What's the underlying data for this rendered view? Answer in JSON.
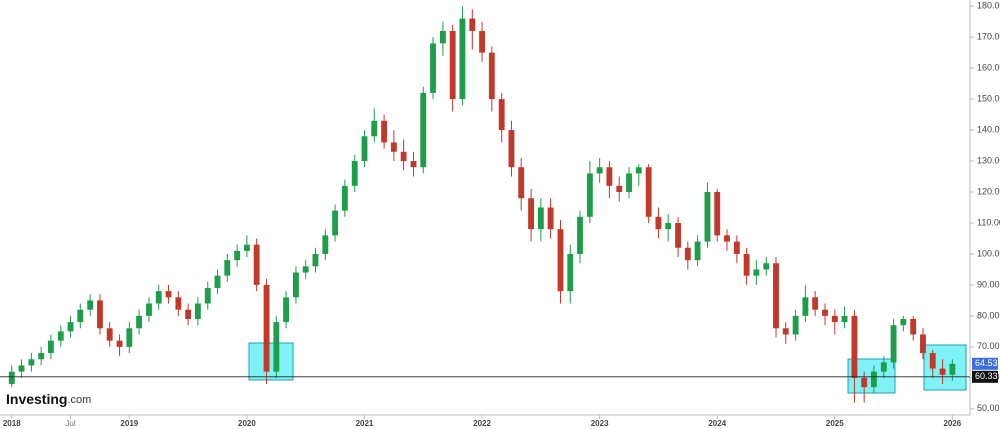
{
  "chart_data": {
    "type": "candlestick",
    "x": [
      2018,
      2018.083,
      2018.167,
      2018.25,
      2018.333,
      2018.417,
      2018.5,
      2018.583,
      2018.667,
      2018.75,
      2018.833,
      2018.917,
      2019,
      2019.083,
      2019.167,
      2019.25,
      2019.333,
      2019.417,
      2019.5,
      2019.583,
      2019.667,
      2019.75,
      2019.833,
      2019.917,
      2020,
      2020.083,
      2020.167,
      2020.25,
      2020.333,
      2020.417,
      2020.5,
      2020.583,
      2020.667,
      2020.75,
      2020.833,
      2020.917,
      2021,
      2021.083,
      2021.167,
      2021.25,
      2021.333,
      2021.417,
      2021.5,
      2021.583,
      2021.667,
      2021.75,
      2021.833,
      2021.917,
      2022,
      2022.083,
      2022.167,
      2022.25,
      2022.333,
      2022.417,
      2022.5,
      2022.583,
      2022.667,
      2022.75,
      2022.833,
      2022.917,
      2023,
      2023.083,
      2023.167,
      2023.25,
      2023.333,
      2023.417,
      2023.5,
      2023.583,
      2023.667,
      2023.75,
      2023.833,
      2023.917,
      2024,
      2024.083,
      2024.167,
      2024.25,
      2024.333,
      2024.417,
      2024.5,
      2024.583,
      2024.667,
      2024.75,
      2024.833,
      2024.917,
      2025,
      2025.083,
      2025.167,
      2025.25,
      2025.333,
      2025.417,
      2025.5,
      2025.583,
      2025.667,
      2025.75,
      2025.833,
      2025.917,
      2026
    ],
    "open": [
      58,
      62,
      64,
      66,
      68,
      72,
      75,
      78,
      82,
      85,
      76,
      72,
      70,
      76,
      80,
      84,
      88,
      86,
      82,
      79,
      84,
      89,
      93,
      98,
      101,
      103,
      90,
      62,
      78,
      86,
      94,
      96,
      100,
      106,
      114,
      122,
      130,
      138,
      143,
      136,
      133,
      130,
      128,
      152,
      168,
      172,
      150,
      176,
      172,
      165,
      150,
      140,
      128,
      118,
      108,
      115,
      108,
      88,
      100,
      112,
      126,
      128,
      122,
      120,
      126,
      128,
      112,
      108,
      110,
      102,
      98,
      104,
      120,
      106,
      104,
      100,
      93,
      95,
      97,
      76,
      74,
      80,
      86,
      82,
      80,
      78,
      80,
      60,
      57,
      62,
      65,
      77,
      79,
      74,
      68,
      63,
      61
    ],
    "high": [
      64,
      66,
      68,
      70,
      74,
      77,
      80,
      84,
      87,
      87,
      78,
      74,
      78,
      82,
      86,
      90,
      90,
      88,
      84,
      86,
      91,
      95,
      100,
      103,
      106,
      105,
      92,
      80,
      88,
      96,
      98,
      102,
      108,
      116,
      124,
      132,
      140,
      147,
      145,
      140,
      137,
      133,
      154,
      170,
      175,
      174,
      180,
      179,
      175,
      167,
      152,
      143,
      131,
      121,
      118,
      118,
      111,
      103,
      114,
      130,
      131,
      130,
      125,
      128,
      129,
      129,
      115,
      113,
      112,
      104,
      106,
      123,
      121,
      108,
      106,
      102,
      98,
      99,
      99,
      78,
      82,
      90,
      88,
      84,
      82,
      83,
      82,
      62,
      64,
      67,
      79,
      80,
      80,
      76,
      69,
      66,
      66
    ],
    "low": [
      57,
      60,
      62,
      64,
      66,
      70,
      73,
      76,
      80,
      74,
      70,
      67,
      68,
      74,
      78,
      82,
      84,
      80,
      77,
      77,
      82,
      87,
      91,
      96,
      99,
      88,
      58,
      60,
      76,
      84,
      92,
      94,
      98,
      104,
      112,
      120,
      128,
      136,
      134,
      130,
      127,
      125,
      126,
      150,
      164,
      146,
      148,
      166,
      162,
      146,
      136,
      125,
      114,
      104,
      104,
      105,
      84,
      84,
      97,
      110,
      123,
      118,
      117,
      118,
      122,
      110,
      105,
      104,
      99,
      95,
      96,
      102,
      104,
      101,
      97,
      90,
      90,
      93,
      73,
      71,
      72,
      78,
      80,
      77,
      74,
      76,
      52,
      52,
      55,
      60,
      63,
      75,
      72,
      66,
      60,
      58,
      59
    ],
    "close": [
      62,
      64,
      66,
      68,
      72,
      75,
      78,
      82,
      85,
      76,
      72,
      70,
      76,
      80,
      84,
      88,
      86,
      82,
      79,
      84,
      89,
      93,
      98,
      101,
      103,
      90,
      62,
      78,
      86,
      94,
      96,
      100,
      106,
      114,
      122,
      130,
      138,
      143,
      136,
      133,
      130,
      128,
      152,
      168,
      172,
      150,
      176,
      172,
      165,
      150,
      140,
      128,
      118,
      108,
      115,
      108,
      88,
      100,
      112,
      126,
      128,
      122,
      120,
      126,
      128,
      112,
      108,
      110,
      102,
      98,
      104,
      120,
      106,
      104,
      100,
      93,
      95,
      97,
      76,
      74,
      80,
      86,
      82,
      80,
      78,
      80,
      60,
      57,
      62,
      65,
      77,
      79,
      74,
      68,
      63,
      61,
      64.53
    ],
    "up_color": "#1e9e4a",
    "down_color": "#c0392b",
    "xlim": [
      2017.9,
      2026.15
    ],
    "xticks": [
      2018,
      {
        "value": 2018.5,
        "label": "Jul"
      },
      2019,
      2020,
      2021,
      2022,
      2023,
      2024,
      2025,
      2026
    ],
    "ylim": [
      48,
      182
    ],
    "yticks": [
      {
        "value": 50,
        "label": "50.00"
      },
      {
        "value": 60,
        "label": "60.00"
      },
      {
        "value": 70,
        "label": "70.00"
      },
      {
        "value": 80,
        "label": "80.00"
      },
      {
        "value": 90,
        "label": "90.00"
      },
      {
        "value": 100,
        "label": "100.00"
      },
      {
        "value": 110,
        "label": "110.00"
      },
      {
        "value": 120,
        "label": "120.00"
      },
      {
        "value": 130,
        "label": "130.00"
      },
      {
        "value": 140,
        "label": "140.00"
      },
      {
        "value": 150,
        "label": "150.00"
      },
      {
        "value": 160,
        "label": "160.00"
      },
      {
        "value": 170,
        "label": "170.00"
      },
      {
        "value": 180,
        "label": "180.00"
      }
    ],
    "horizontal_line": 60.33,
    "last_price": 64.53,
    "logo": "Investing",
    "logo_suffix": ".com"
  }
}
